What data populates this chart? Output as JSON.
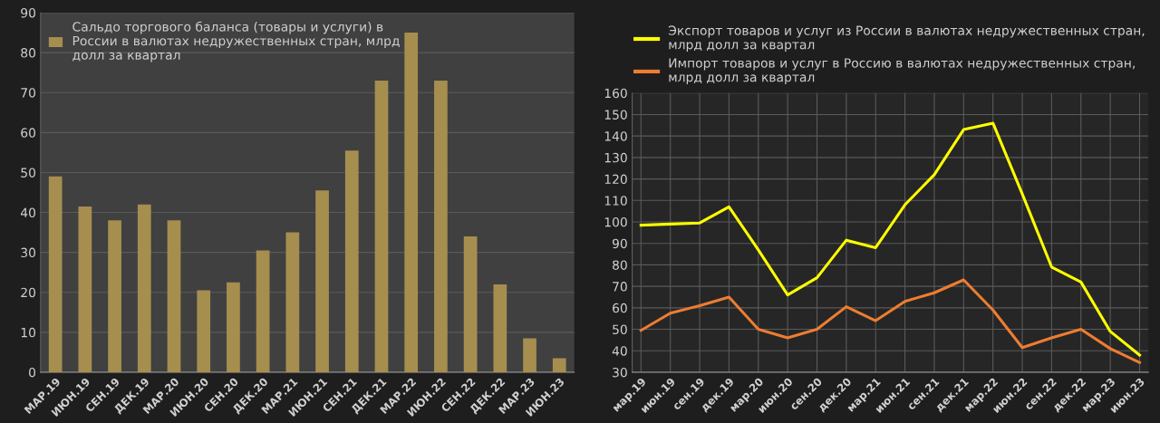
{
  "chart_data": [
    {
      "type": "bar",
      "categories": [
        "МАР.19",
        "ИЮН.19",
        "СЕН.19",
        "ДЕК.19",
        "МАР.20",
        "ИЮН.20",
        "СЕН.20",
        "ДЕК.20",
        "МАР.21",
        "ИЮН.21",
        "СЕН.21",
        "ДЕК.21",
        "МАР.22",
        "ИЮН.22",
        "СЕН.22",
        "ДЕК.22",
        "МАР.23",
        "ИЮН.23"
      ],
      "series": [
        {
          "name": "Сальдо торгового баланса (товары и услуги) в России в валютах недружественных стран, млрд долл за квартал",
          "color": "#a68e4f",
          "values": [
            49,
            41.5,
            38,
            42,
            38,
            20.5,
            22.5,
            30.5,
            35,
            45.5,
            55.5,
            73,
            85,
            73,
            34,
            22,
            8.5,
            3.5
          ]
        }
      ],
      "ylim": [
        0,
        90
      ],
      "yticks": [
        0,
        10,
        20,
        30,
        40,
        50,
        60,
        70,
        80,
        90
      ],
      "grid": "y",
      "legend": "top left"
    },
    {
      "type": "line",
      "categories": [
        "мар.19",
        "июн.19",
        "сен.19",
        "дек.19",
        "мар.20",
        "июн.20",
        "сен.20",
        "дек.20",
        "мар.21",
        "июн.21",
        "сен.21",
        "дек.21",
        "мар.22",
        "июн.22",
        "сен.22",
        "дек.22",
        "мар.23",
        "июн.23"
      ],
      "series": [
        {
          "name": "Экспорт товаров и услуг из России в валютах недружественных стран, млрд долл за квартал",
          "color": "#ffff00",
          "values": [
            98.5,
            99,
            99.5,
            107,
            87,
            66,
            74,
            91.5,
            88,
            108,
            122,
            143,
            146,
            113,
            79,
            72,
            49,
            38
          ]
        },
        {
          "name": "Импорт товаров и услуг в Россию в валютах недружественных стран, млрд долл за квартал",
          "color": "#ed7d31",
          "values": [
            49.5,
            57.5,
            61,
            65,
            50,
            46,
            50,
            60.5,
            54,
            63,
            67,
            73,
            59,
            41.5,
            46,
            50,
            41,
            34.5
          ]
        }
      ],
      "ylim": [
        30,
        160
      ],
      "yticks": [
        30,
        40,
        50,
        60,
        70,
        80,
        90,
        100,
        110,
        120,
        130,
        140,
        150,
        160
      ],
      "grid": true,
      "legend": "top"
    }
  ]
}
